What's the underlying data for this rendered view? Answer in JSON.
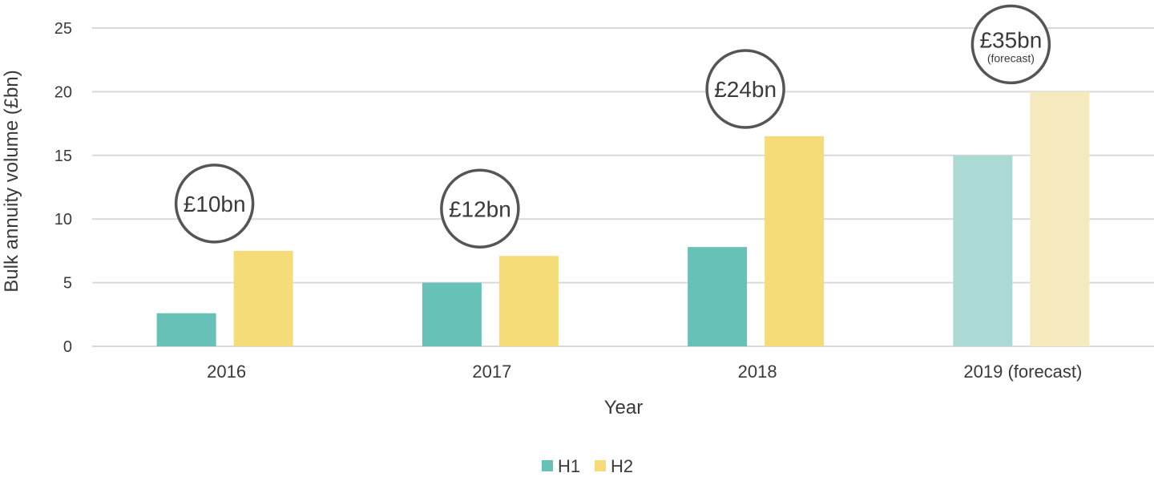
{
  "chart_data": {
    "type": "bar",
    "categories": [
      "2016",
      "2017",
      "2018",
      "2019 (forecast)"
    ],
    "series": [
      {
        "name": "H1",
        "values": [
          2.6,
          5.0,
          7.8,
          15.0
        ],
        "color": "#67c1b6",
        "forecast_color": "#abdad5"
      },
      {
        "name": "H2",
        "values": [
          7.5,
          7.1,
          16.5,
          20.0
        ],
        "color": "#f5dc78",
        "forecast_color": "#f5e9be"
      }
    ],
    "forecast_category_index": 3,
    "xlabel": "Year",
    "ylabel": "Bulk annuity volume (£bn)",
    "ylim": [
      0,
      25
    ],
    "yticks": [
      0,
      5,
      10,
      15,
      20,
      25
    ],
    "grid": true,
    "legend": "bottom-center",
    "annotations": [
      {
        "category": "2016",
        "text": "£10bn",
        "subtext": ""
      },
      {
        "category": "2017",
        "text": "£12bn",
        "subtext": ""
      },
      {
        "category": "2018",
        "text": "£24bn",
        "subtext": ""
      },
      {
        "category": "2019 (forecast)",
        "text": "£35bn",
        "subtext": "(forecast)"
      }
    ]
  }
}
